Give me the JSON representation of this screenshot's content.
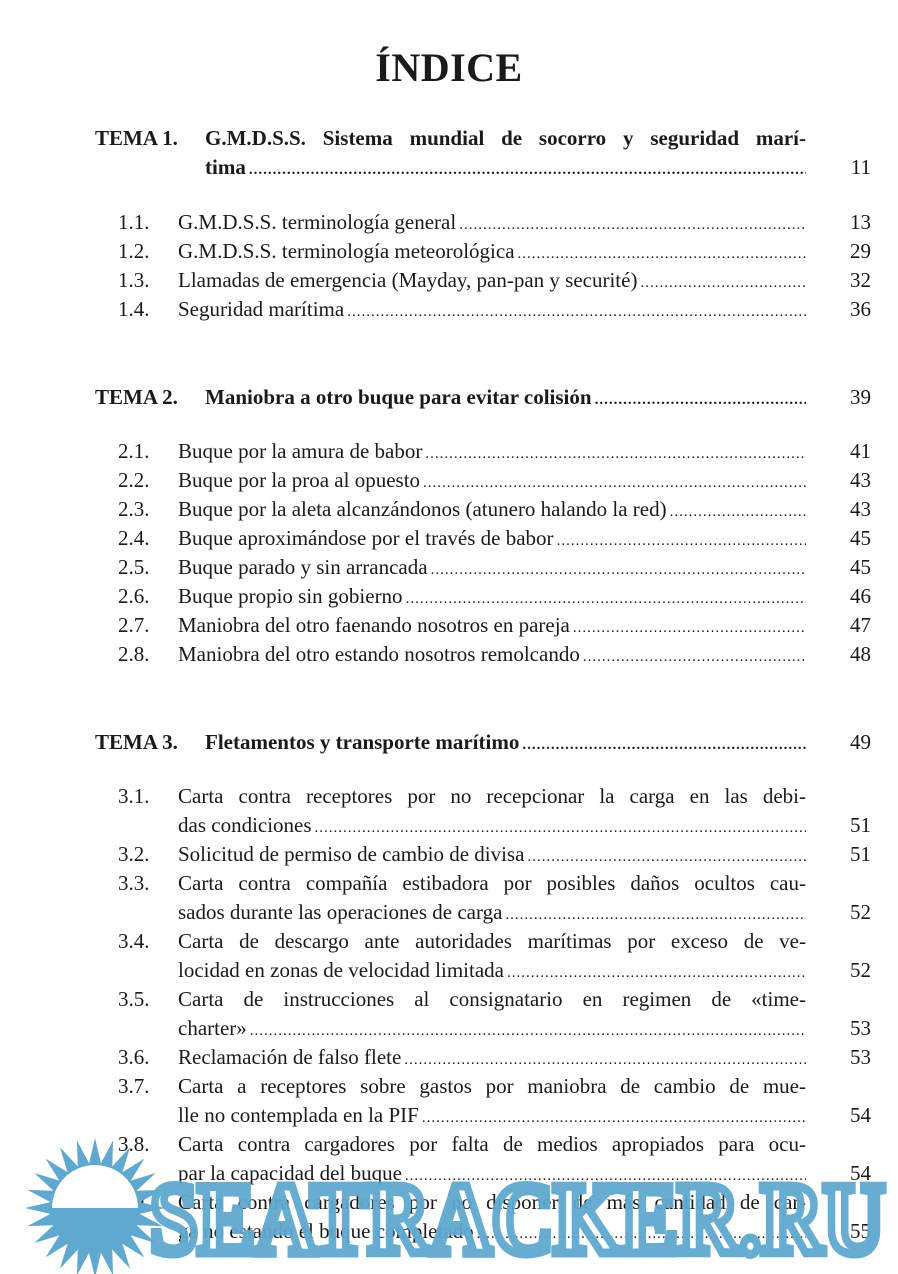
{
  "title": "ÍNDICE",
  "sections": [
    {
      "label": "TEMA 1.",
      "lines": [
        "G.M.D.S.S. Sistema mundial de socorro y seguridad marí-",
        "tima"
      ],
      "page": "11",
      "items": [
        {
          "num": "1.1.",
          "lines": [
            "G.M.D.S.S. terminología general"
          ],
          "page": "13"
        },
        {
          "num": "1.2.",
          "lines": [
            "G.M.D.S.S. terminología meteorológica"
          ],
          "page": "29"
        },
        {
          "num": "1.3.",
          "lines": [
            "Llamadas de emergencia (Mayday, pan-pan y securité)"
          ],
          "page": "32"
        },
        {
          "num": "1.4.",
          "lines": [
            "Seguridad marítima"
          ],
          "page": "36"
        }
      ]
    },
    {
      "label": "TEMA 2.",
      "lines": [
        "Maniobra a otro buque para evitar colisión"
      ],
      "page": "39",
      "items": [
        {
          "num": "2.1.",
          "lines": [
            "Buque por la amura de babor"
          ],
          "page": "41"
        },
        {
          "num": "2.2.",
          "lines": [
            "Buque por la proa al opuesto"
          ],
          "page": "43"
        },
        {
          "num": "2.3.",
          "lines": [
            "Buque por la aleta alcanzándonos (atunero halando la red)"
          ],
          "page": "43"
        },
        {
          "num": "2.4.",
          "lines": [
            "Buque aproximándose por el través de babor"
          ],
          "page": "45"
        },
        {
          "num": "2.5.",
          "lines": [
            "Buque parado y sin arrancada"
          ],
          "page": "45"
        },
        {
          "num": "2.6.",
          "lines": [
            "Buque propio sin gobierno"
          ],
          "page": "46"
        },
        {
          "num": "2.7.",
          "lines": [
            "Maniobra del otro faenando nosotros en pareja"
          ],
          "page": "47"
        },
        {
          "num": "2.8.",
          "lines": [
            "Maniobra del otro estando nosotros remolcando"
          ],
          "page": "48"
        }
      ]
    },
    {
      "label": "TEMA 3.",
      "lines": [
        "Fletamentos y transporte marítimo"
      ],
      "page": "49",
      "items": [
        {
          "num": "3.1.",
          "lines": [
            "Carta contra receptores por no recepcionar la carga en las debi-",
            "das condiciones"
          ],
          "page": "51"
        },
        {
          "num": "3.2.",
          "lines": [
            "Solicitud de permiso de cambio de divisa"
          ],
          "page": "51"
        },
        {
          "num": "3.3.",
          "lines": [
            "Carta contra compañía estibadora por posibles daños ocultos cau-",
            "sados durante las operaciones de carga"
          ],
          "page": "52"
        },
        {
          "num": "3.4.",
          "lines": [
            "Carta de descargo ante autoridades marítimas por exceso de ve-",
            "locidad en zonas de velocidad limitada"
          ],
          "page": "52"
        },
        {
          "num": "3.5.",
          "lines": [
            "Carta de instrucciones al consignatario en regimen de «time-",
            "charter»"
          ],
          "page": "53"
        },
        {
          "num": "3.6.",
          "lines": [
            "Reclamación de falso flete"
          ],
          "page": "53"
        },
        {
          "num": "3.7.",
          "lines": [
            "Carta a receptores sobre gastos por maniobra de cambio de mue-",
            "lle no contemplada en la PIF"
          ],
          "page": "54"
        },
        {
          "num": "3.8.",
          "lines": [
            "Carta contra cargadores por falta de medios apropiados para ocu-",
            "par la capacidad del buque"
          ],
          "page": "54"
        },
        {
          "num": "3.9.",
          "lines": [
            "Carta contra cargadores por no disponer de más cantidad de car-",
            "ga no estando el buque completado"
          ],
          "page": "55"
        }
      ]
    }
  ],
  "watermark": {
    "text": "SEATRACKER.RU",
    "color": "#5fa8cf"
  }
}
